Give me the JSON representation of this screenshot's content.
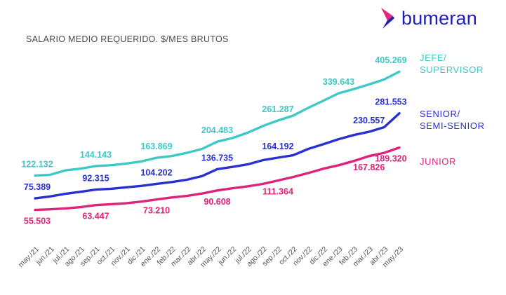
{
  "brand": {
    "name": "bumeran",
    "colors": {
      "primary": "#1d1fb8",
      "accent": "#e8267d"
    }
  },
  "chart_data": {
    "type": "line",
    "title": "SALARIO MEDIO REQUERIDO. $/MES BRUTOS",
    "xlabel": "",
    "ylabel": "",
    "grid": false,
    "legend": "right",
    "ylim": [
      0,
      420000
    ],
    "categories": [
      "may./21",
      "jun./21",
      "jul./21",
      "ago./21",
      "sep./21",
      "oct./21",
      "nov./21",
      "dic./21",
      "ene./22",
      "feb./22",
      "mar./22",
      "abr./22",
      "may./22",
      "jun./22",
      "jul./22",
      "ago./22",
      "sep./22",
      "oct./22",
      "nov./22",
      "dic./22",
      "ene./23",
      "feb./23",
      "mar./23",
      "abr./23",
      "may./23"
    ],
    "series": [
      {
        "name": "JEFE/ SUPERVISOR",
        "label_lines": [
          "JEFE/",
          "SUPERVISOR"
        ],
        "color": "#3ec9c6",
        "values": [
          122132,
          124000,
          134000,
          138000,
          144143,
          146000,
          150000,
          155000,
          163869,
          168000,
          176000,
          186000,
          204483,
          214000,
          228000,
          246000,
          261287,
          275000,
          297000,
          318000,
          339643,
          352000,
          366000,
          381000,
          405269
        ],
        "labels": [
          {
            "index": 0,
            "text": "122.132"
          },
          {
            "index": 4,
            "text": "144.143"
          },
          {
            "index": 8,
            "text": "163.869"
          },
          {
            "index": 12,
            "text": "204.483"
          },
          {
            "index": 16,
            "text": "261.287"
          },
          {
            "index": 20,
            "text": "339.643"
          },
          {
            "index": 24,
            "text": "405.269"
          }
        ]
      },
      {
        "name": "SENIOR/ SEMI-SENIOR",
        "label_lines": [
          "SENIOR/",
          "SEMI-SENIOR"
        ],
        "color": "#2a2fd0",
        "values": [
          75389,
          79000,
          84000,
          88000,
          92315,
          94000,
          97000,
          100000,
          104202,
          108000,
          113000,
          121000,
          136735,
          142000,
          148000,
          158000,
          164192,
          170000,
          186000,
          198000,
          211000,
          222000,
          230557,
          243000,
          281553
        ],
        "labels": [
          {
            "index": 0,
            "text": "75.389"
          },
          {
            "index": 4,
            "text": "92.315"
          },
          {
            "index": 8,
            "text": "104.202"
          },
          {
            "index": 12,
            "text": "136.735"
          },
          {
            "index": 16,
            "text": "164.192"
          },
          {
            "index": 22,
            "text": "230.557"
          },
          {
            "index": 24,
            "text": "281.553"
          }
        ]
      },
      {
        "name": "JUNIOR",
        "label_lines": [
          "JUNIOR"
        ],
        "color": "#e0237a",
        "values": [
          55503,
          56500,
          58000,
          60000,
          63447,
          65000,
          66500,
          69500,
          73210,
          77000,
          80000,
          84500,
          90608,
          95000,
          99000,
          104000,
          111364,
          119000,
          128000,
          138000,
          146000,
          156000,
          167826,
          176000,
          189320
        ],
        "labels": [
          {
            "index": 0,
            "text": "55.503"
          },
          {
            "index": 4,
            "text": "63.447"
          },
          {
            "index": 8,
            "text": "73.210"
          },
          {
            "index": 12,
            "text": "90.608"
          },
          {
            "index": 16,
            "text": "111.364"
          },
          {
            "index": 22,
            "text": "167.826"
          },
          {
            "index": 24,
            "text": "189.320"
          }
        ]
      }
    ]
  }
}
